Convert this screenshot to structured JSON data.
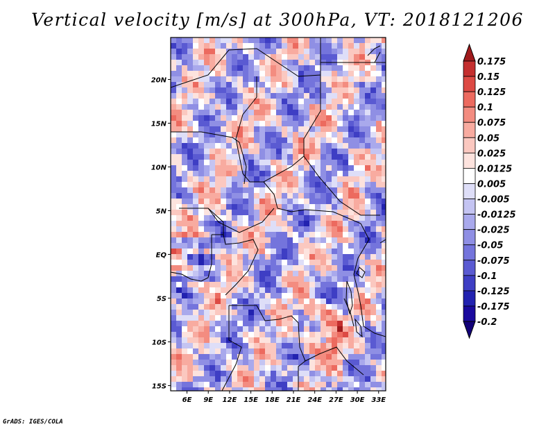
{
  "title": "Vertical velocity [m/s] at 300hPa, VT: 2018121206",
  "credit": "GrADS: IGES/COLA",
  "chart_data": {
    "type": "heatmap",
    "title": "Vertical velocity [m/s] at 300hPa, VT: 2018121206",
    "variable": "Vertical velocity",
    "units": "m/s",
    "level": "300hPa",
    "valid_time": "2018121206",
    "x_ticks": [
      "6E",
      "9E",
      "12E",
      "15E",
      "18E",
      "21E",
      "24E",
      "27E",
      "30E",
      "33E"
    ],
    "x_tick_values": [
      6,
      9,
      12,
      15,
      18,
      21,
      24,
      27,
      30,
      33
    ],
    "y_ticks": [
      "20N",
      "15N",
      "10N",
      "5N",
      "EQ",
      "5S",
      "10S",
      "15S"
    ],
    "y_tick_values": [
      20,
      15,
      10,
      5,
      0,
      -5,
      -10,
      -15
    ],
    "xlim": [
      3.7,
      34
    ],
    "ylim": [
      -15.6,
      24.8
    ],
    "colorbar": {
      "levels": [
        "0.175",
        "0.15",
        "0.125",
        "0.1",
        "0.075",
        "0.05",
        "0.025",
        "0.0125",
        "0.005",
        "-0.005",
        "-0.0125",
        "-0.025",
        "-0.05",
        "-0.075",
        "-0.1",
        "-0.125",
        "-0.175",
        "-0.2"
      ],
      "colors": [
        "#a01a1c",
        "#c42f2f",
        "#dd4a44",
        "#ec6a5f",
        "#f38c80",
        "#f8aba0",
        "#fbc8c0",
        "#fde3de",
        "#ffffff",
        "#dedef8",
        "#c4c4f2",
        "#a9a9ec",
        "#8f8fe4",
        "#7474dc",
        "#5a5ad2",
        "#3e3ec4",
        "#2222b0",
        "#1a0a9e",
        "#120078"
      ]
    }
  }
}
